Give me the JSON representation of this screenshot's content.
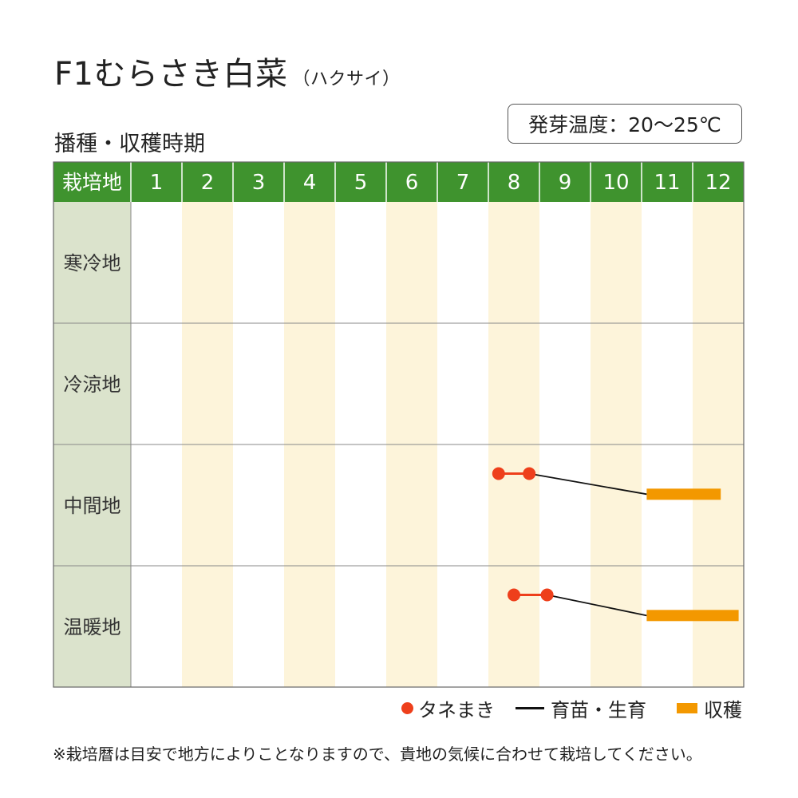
{
  "header": {
    "title": "F1むらさき白菜",
    "title_paren": "（ハクサイ）",
    "subtitle": "播種・収穫時期",
    "germination": "発芽温度：20～25℃"
  },
  "chart_data": {
    "type": "table",
    "corner_label": "栽培地",
    "months": [
      "1",
      "2",
      "3",
      "4",
      "5",
      "6",
      "7",
      "8",
      "9",
      "10",
      "11",
      "12"
    ],
    "regions": [
      {
        "name": "寒冷地",
        "sowing": [],
        "growing": [],
        "harvest": []
      },
      {
        "name": "冷涼地",
        "sowing": [],
        "growing": [],
        "harvest": []
      },
      {
        "name": "中間地",
        "sowing": [
          8.2,
          8.8
        ],
        "growing": [
          8.8,
          11.1
        ],
        "harvest": [
          11.1,
          12.55
        ]
      },
      {
        "name": "温暖地",
        "sowing": [
          8.5,
          9.15
        ],
        "growing": [
          9.15,
          11.1
        ],
        "harvest": [
          11.1,
          12.9
        ]
      }
    ],
    "colors": {
      "header": "#3f932e",
      "region_column": "#dbe3cc",
      "shade": "#fdf4da",
      "sowing": "#ee3f1b",
      "growing": "#111111",
      "harvest": "#f39800"
    }
  },
  "legend": {
    "sowing": "タネまき",
    "growing": "育苗・生育",
    "harvest": "収穫"
  },
  "note": "※栽培暦は目安で地方によりことなりますので、貴地の気候に合わせて栽培してください。"
}
